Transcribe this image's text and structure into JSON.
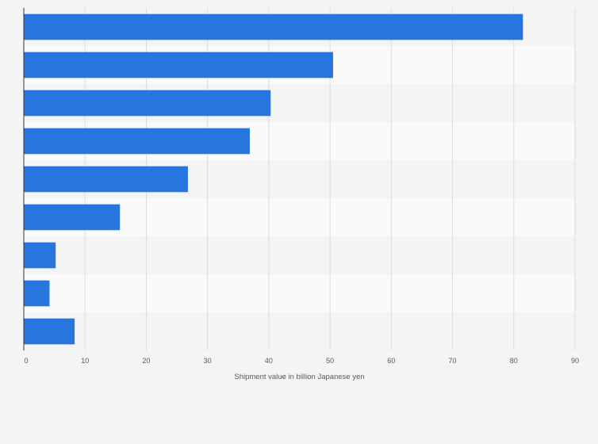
{
  "chart_data": {
    "type": "bar",
    "orientation": "horizontal",
    "title": "",
    "categories": [
      "",
      "",
      "",
      "",
      "",
      "",
      "",
      "",
      ""
    ],
    "values": [
      81.5,
      50.5,
      40.3,
      36.9,
      26.8,
      15.7,
      5.2,
      4.2,
      8.3
    ],
    "xlabel": "Shipment value in billion Japanese yen",
    "ylabel": "",
    "xlim": [
      0,
      90
    ],
    "xticks": [
      0,
      10,
      20,
      30,
      40,
      50,
      60,
      70,
      80,
      90
    ],
    "xtick_labels": [
      "0",
      "10",
      "20",
      "30",
      "40",
      "50",
      "60",
      "70",
      "80",
      "90"
    ],
    "grid": true,
    "bar_color": "#2876dd",
    "band_colors": [
      "#f4f4f5",
      "#fafafb"
    ],
    "gridline_color": "#dcdde0",
    "axis_color": "#333333"
  }
}
